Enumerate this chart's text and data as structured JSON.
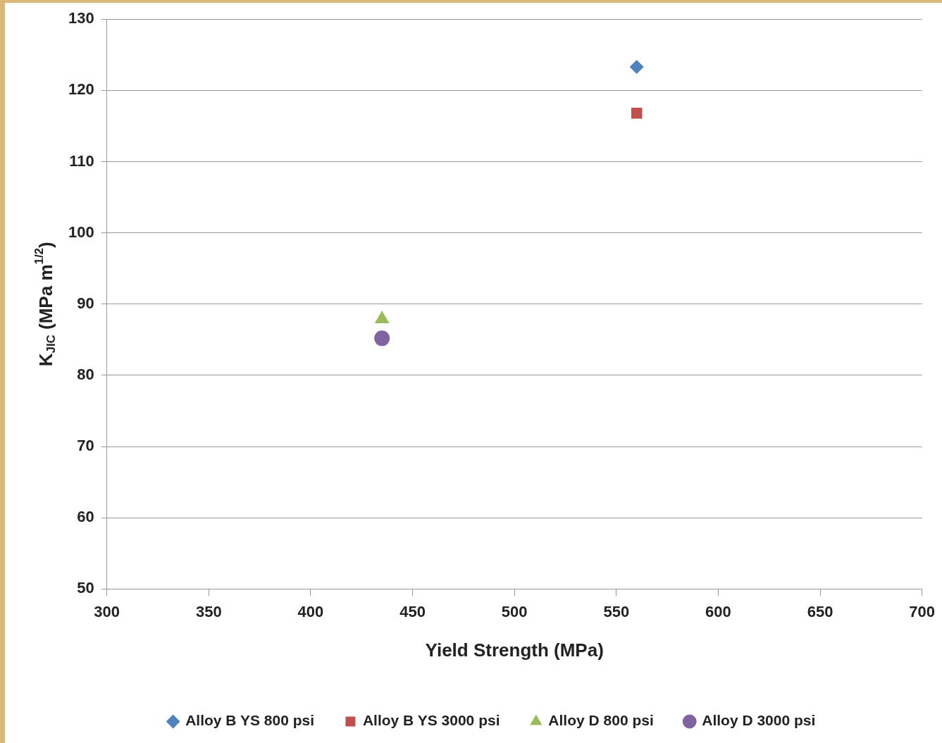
{
  "chart_data": {
    "type": "scatter",
    "xlabel": "Yield Strength (MPa)",
    "ylabel": "K$_{JIC}$ (MPa m$^{1/2}$)",
    "xlim": [
      300,
      700
    ],
    "xticks": [
      300,
      350,
      400,
      450,
      500,
      550,
      600,
      650,
      700
    ],
    "ylim": [
      50,
      130
    ],
    "yticks": [
      50,
      60,
      70,
      80,
      90,
      100,
      110,
      120,
      130
    ],
    "grid": "y",
    "legend": "bottom",
    "x": [
      435,
      560
    ],
    "series": [
      {
        "name": "Alloy B YS 800 psi",
        "color": "#4f81bd",
        "marker": "diamond",
        "values": [
          null,
          123.3
        ]
      },
      {
        "name": "Alloy B YS 3000 psi",
        "color": "#c0504d",
        "marker": "square",
        "values": [
          null,
          116.8
        ]
      },
      {
        "name": "Alloy D 800 psi",
        "color": "#9bbb59",
        "marker": "triangle",
        "values": [
          87.9,
          null
        ]
      },
      {
        "name": "Alloy D 3000 psi",
        "color": "#8064a2",
        "marker": "circle",
        "values": [
          85.2,
          null
        ]
      }
    ]
  }
}
